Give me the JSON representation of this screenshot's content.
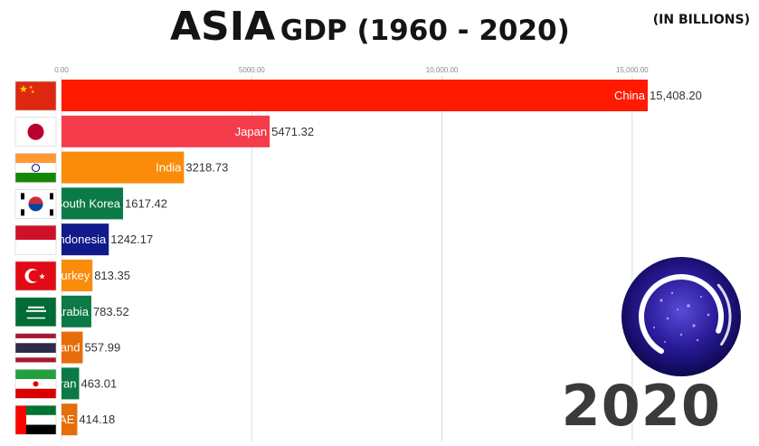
{
  "header": {
    "title_main": "ASIA",
    "title_rest": "GDP (1960 - 2020)",
    "unit": "(IN BILLIONS)"
  },
  "year": "2020",
  "logo": {
    "icon": "circular-earth-night-logo-icon"
  },
  "chart_data": {
    "type": "bar",
    "orientation": "horizontal",
    "title": "ASIA GDP (1960 - 2020)",
    "unit": "(IN BILLIONS)",
    "xlim": [
      0,
      15408.2
    ],
    "x_ticks": [
      0,
      5000,
      10000,
      15000
    ],
    "x_tick_labels": [
      "0.00",
      "5000.00",
      "10,000.00",
      "15,000.00"
    ],
    "grid": true,
    "bars": [
      {
        "label": "China",
        "value": 15408.2,
        "value_label": "15,408.20",
        "color": "#ff1a00",
        "flag": "china-flag-icon"
      },
      {
        "label": "Japan",
        "value": 5471.32,
        "value_label": "5471.32",
        "color": "#f43c4a",
        "flag": "japan-flag-icon"
      },
      {
        "label": "India",
        "value": 3218.73,
        "value_label": "3218.73",
        "color": "#fa8c0a",
        "flag": "india-flag-icon"
      },
      {
        "label": "South Korea",
        "value": 1617.42,
        "value_label": "1617.42",
        "color": "#0b7a46",
        "flag": "south-korea-flag-icon"
      },
      {
        "label": "Indonesia",
        "value": 1242.17,
        "value_label": "1242.17",
        "color": "#101a8a",
        "flag": "indonesia-flag-icon"
      },
      {
        "label": "Turkey",
        "value": 813.35,
        "value_label": "813.35",
        "color": "#fa8c0a",
        "flag": "turkey-flag-icon"
      },
      {
        "label": "Saudi Arabia",
        "value": 783.52,
        "value_label": "783.52",
        "color": "#0b7a46",
        "flag": "saudi-arabia-flag-icon"
      },
      {
        "label": "Thailand",
        "value": 557.99,
        "value_label": "557.99",
        "color": "#e66d0a",
        "flag": "thailand-flag-icon"
      },
      {
        "label": "Iran",
        "value": 463.01,
        "value_label": "463.01",
        "color": "#0b7a46",
        "flag": "iran-flag-icon"
      },
      {
        "label": "UAE",
        "value": 414.18,
        "value_label": "414.18",
        "color": "#e66d0a",
        "flag": "uae-flag-icon"
      }
    ]
  }
}
